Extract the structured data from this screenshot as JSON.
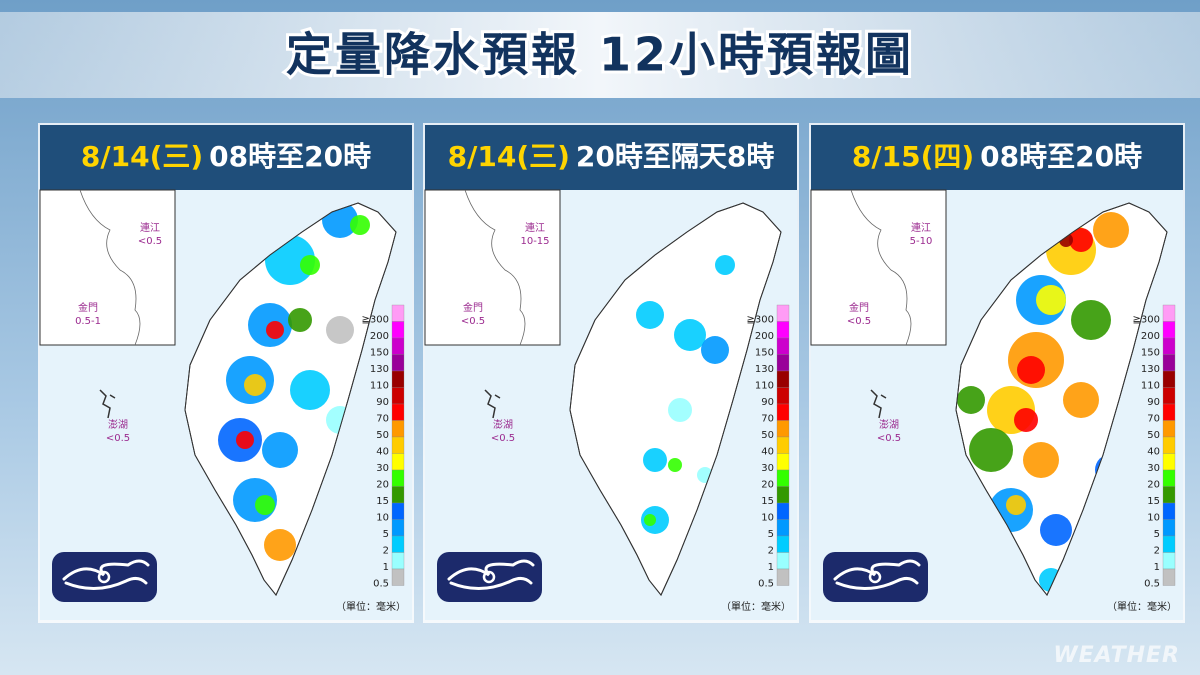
{
  "title": "定量降水預報 12小時預報圖",
  "panels": [
    {
      "date": "8/14",
      "weekday": "(三)",
      "period": "08時至20時",
      "islands": [
        {
          "name": "連江",
          "value": "<0.5"
        },
        {
          "name": "金門",
          "value": "0.5-1"
        },
        {
          "name": "澎湖",
          "value": "<0.5"
        }
      ]
    },
    {
      "date": "8/14",
      "weekday": "(三)",
      "period": "20時至隔天8時",
      "islands": [
        {
          "name": "連江",
          "value": "10-15"
        },
        {
          "name": "金門",
          "value": "<0.5"
        },
        {
          "name": "澎湖",
          "value": "<0.5"
        }
      ]
    },
    {
      "date": "8/15",
      "weekday": "(四)",
      "period": "08時至20時",
      "islands": [
        {
          "name": "連江",
          "value": "5-10"
        },
        {
          "name": "金門",
          "value": "<0.5"
        },
        {
          "name": "澎湖",
          "value": "<0.5"
        }
      ]
    }
  ],
  "legend": {
    "labels": [
      "≧300",
      "200",
      "150",
      "130",
      "110",
      "90",
      "70",
      "50",
      "40",
      "30",
      "20",
      "15",
      "10",
      "5",
      "2",
      "1",
      "0.5"
    ],
    "colors": [
      "#ff9cf5",
      "#ff00ff",
      "#cc00cc",
      "#990099",
      "#990000",
      "#cc0000",
      "#ff0000",
      "#ff9900",
      "#ffcc00",
      "#ffff00",
      "#33ff00",
      "#339900",
      "#0066ff",
      "#0099ff",
      "#00ccff",
      "#99ffff",
      "#c1c1c1"
    ],
    "unit": "（單位：毫米）"
  },
  "watermark": "WEATHER"
}
